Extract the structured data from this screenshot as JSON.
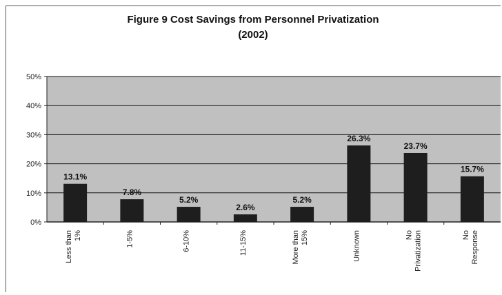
{
  "chart_data": {
    "type": "bar",
    "title": "Figure 9 Cost Savings from Personnel Privatization",
    "subtitle": "(2002)",
    "categories": [
      [
        "Less than",
        "1%"
      ],
      [
        "1-5%"
      ],
      [
        "6-10%"
      ],
      [
        "11-15%"
      ],
      [
        "More than",
        "15%"
      ],
      [
        "Unknown"
      ],
      [
        "No",
        "Privatization"
      ],
      [
        "No",
        "Response"
      ]
    ],
    "values": [
      13.1,
      7.8,
      5.2,
      2.6,
      5.2,
      26.3,
      23.7,
      15.7
    ],
    "data_labels": [
      "13.1%",
      "7.8%",
      "5.2%",
      "2.6%",
      "5.2%",
      "26.3%",
      "23.7%",
      "15.7%"
    ],
    "y_ticks": [
      "0%",
      "10%",
      "20%",
      "30%",
      "40%",
      "50%"
    ],
    "ylim": [
      0,
      50
    ],
    "grid": true,
    "xlabel": "",
    "ylabel": "",
    "colors": {
      "plot_bg": "#c0c0c0",
      "bar": "#1e1e1e",
      "grid": "#111111"
    }
  }
}
